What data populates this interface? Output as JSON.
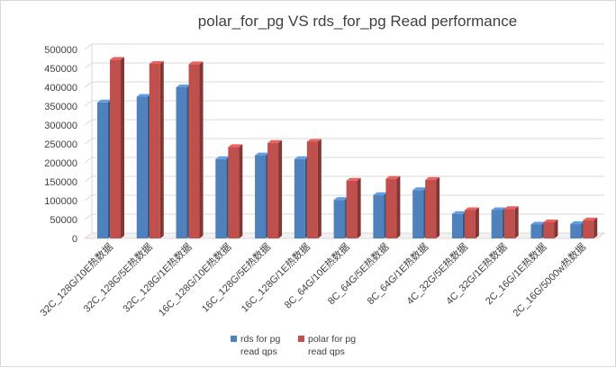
{
  "chart_data": {
    "type": "bar",
    "style": "3d-clustered-column",
    "title": "polar_for_pg VS rds_for_pg Read performance",
    "categories": [
      "32C_128G/10E热数据",
      "32C_128G/5E热数据",
      "32C_128G/1E热数据",
      "16C_128G/10E热数据",
      "16C_128G/5E热数据",
      "16C_128G/1E热数据",
      "8C_64G/10E热数据",
      "8C_64G/5E热数据",
      "8C_64G/1E热数据",
      "4C_32G/5E热数据",
      "4C_32G/1E热数据",
      "2C_16G/1E热数据",
      "2C_16G/5000w热数据"
    ],
    "series": [
      {
        "name": "rds for pg read qps",
        "legend_lines": [
          "rds for pg",
          "read qps"
        ],
        "color": "#4f81bd",
        "values": [
          360000,
          375000,
          400000,
          210000,
          220000,
          210000,
          102000,
          115000,
          128000,
          65000,
          75000,
          37000,
          38000
        ]
      },
      {
        "name": "polar for pg read qps",
        "legend_lines": [
          "polar for pg",
          "read qps"
        ],
        "color": "#c0504d",
        "values": [
          473000,
          462000,
          461000,
          242000,
          253000,
          256000,
          153000,
          158000,
          155000,
          75000,
          78000,
          43000,
          48000
        ]
      }
    ],
    "yticks": [
      "0",
      "50000",
      "100000",
      "150000",
      "200000",
      "250000",
      "300000",
      "350000",
      "400000",
      "450000",
      "500000"
    ],
    "ylim": [
      0,
      500000
    ],
    "grid": true,
    "legend_position": "bottom"
  }
}
